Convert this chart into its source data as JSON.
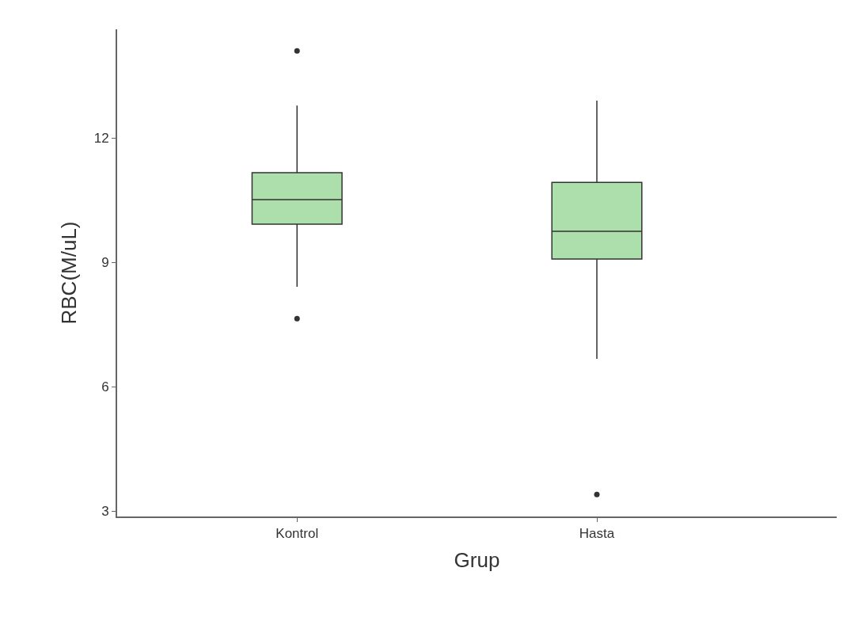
{
  "chart_data": {
    "type": "box",
    "xlabel": "Grup",
    "ylabel": "RBC(M/uL)",
    "categories": [
      "Kontrol",
      "Hasta"
    ],
    "boxes": [
      {
        "low": 8.41,
        "q1": 9.92,
        "median": 10.51,
        "q3": 11.16,
        "high": 12.78,
        "outliers": [
          14.1,
          7.64
        ]
      },
      {
        "low": 6.67,
        "q1": 9.08,
        "median": 9.75,
        "q3": 10.93,
        "high": 12.9,
        "outliers": [
          3.4
        ]
      }
    ],
    "color": "#addfad",
    "ylim": [
      2.87,
      14.62
    ],
    "yticks": [
      3,
      6,
      9,
      12
    ]
  }
}
